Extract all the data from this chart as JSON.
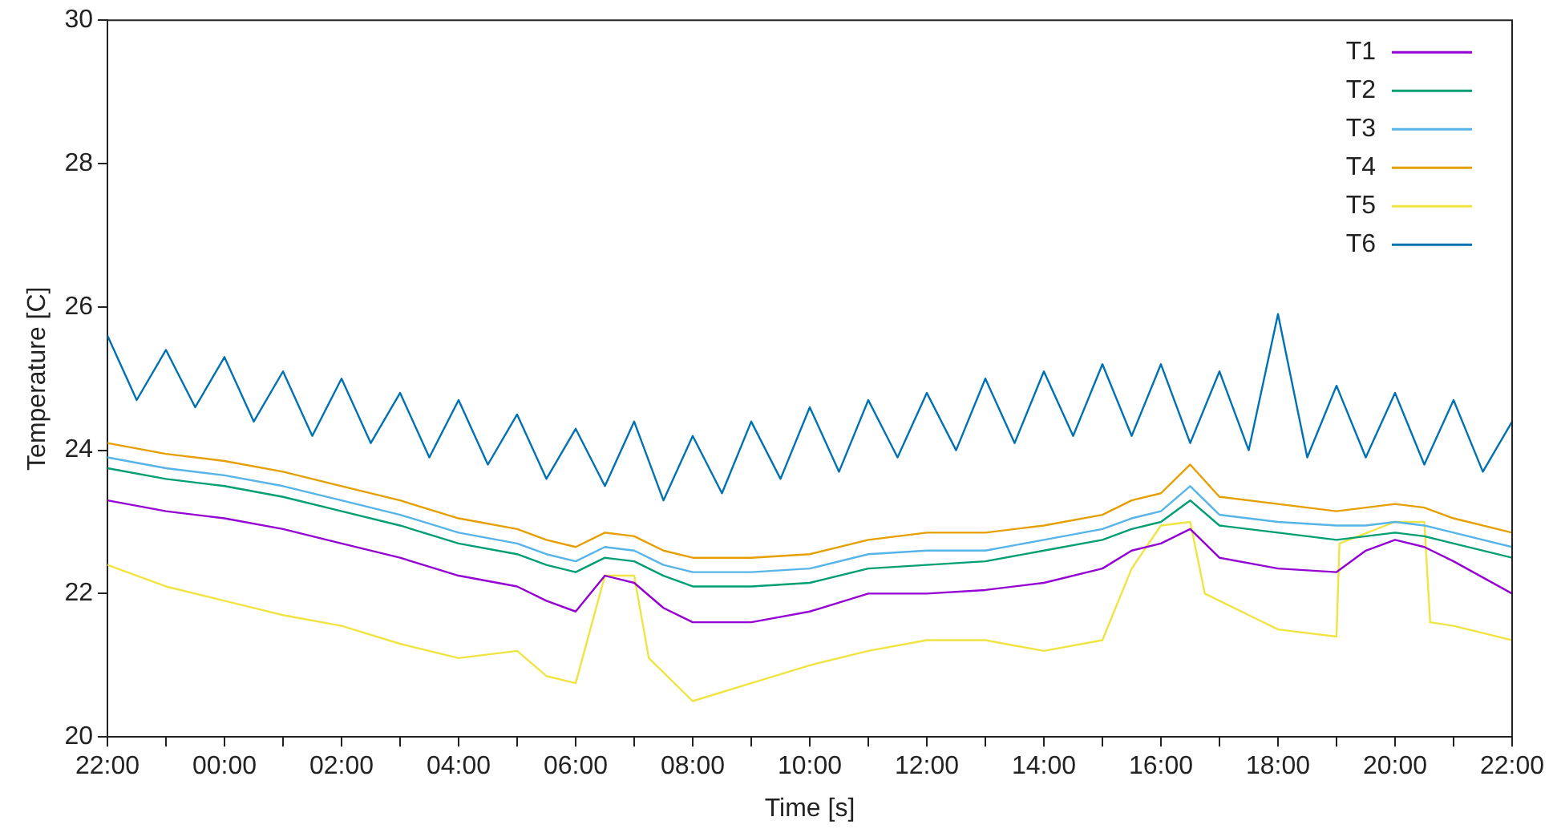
{
  "chart_data": {
    "type": "line",
    "xlabel": "Time [s]",
    "ylabel": "Temperature [C]",
    "xlim": [
      "--01-01T22:00",
      "--01-02T22:00"
    ],
    "ylim": [
      20,
      30
    ],
    "xticks": [
      {
        "value": "--01-01T22:00",
        "label": "22:00"
      },
      {
        "value": "--01-01T23:00",
        "label": null
      },
      {
        "value": "--01-02T00:00",
        "label": "00:00"
      },
      {
        "value": "--01-02T01:00",
        "label": null
      },
      {
        "value": "--01-02T02:00",
        "label": "02:00"
      },
      {
        "value": "--01-02T03:00",
        "label": null
      },
      {
        "value": "--01-02T04:00",
        "label": "04:00"
      },
      {
        "value": "--01-02T05:00",
        "label": null
      },
      {
        "value": "--01-02T06:00",
        "label": "06:00"
      },
      {
        "value": "--01-02T07:00",
        "label": null
      },
      {
        "value": "--01-02T08:00",
        "label": "08:00"
      },
      {
        "value": "--01-02T09:00",
        "label": null
      },
      {
        "value": "--01-02T10:00",
        "label": "10:00"
      },
      {
        "value": "--01-02T11:00",
        "label": null
      },
      {
        "value": "--01-02T12:00",
        "label": "12:00"
      },
      {
        "value": "--01-02T13:00",
        "label": null
      },
      {
        "value": "--01-02T14:00",
        "label": "14:00"
      },
      {
        "value": "--01-02T15:00",
        "label": null
      },
      {
        "value": "--01-02T16:00",
        "label": "16:00"
      },
      {
        "value": "--01-02T17:00",
        "label": null
      },
      {
        "value": "--01-02T18:00",
        "label": "18:00"
      },
      {
        "value": "--01-02T19:00",
        "label": null
      },
      {
        "value": "--01-02T20:00",
        "label": "20:00"
      },
      {
        "value": "--01-02T21:00",
        "label": null
      },
      {
        "value": "--01-02T22:00",
        "label": "22:00"
      }
    ],
    "yticks": [
      20,
      22,
      24,
      26,
      28,
      30
    ],
    "grid": false,
    "legend": "top right",
    "marker": "none",
    "line_style": "solid",
    "x": [
      "--01-01T22:00",
      "--01-01T23:00",
      "--01-02T00:00",
      "--01-02T01:00",
      "--01-02T02:00",
      "--01-02T03:00",
      "--01-02T04:00",
      "--01-02T05:00",
      "--01-02T05:30",
      "--01-02T06:00",
      "--01-02T06:30",
      "--01-02T07:00",
      "--01-02T07:30",
      "--01-02T08:00",
      "--01-02T09:00",
      "--01-02T10:00",
      "--01-02T11:00",
      "--01-02T12:00",
      "--01-02T13:00",
      "--01-02T14:00",
      "--01-02T15:00",
      "--01-02T15:30",
      "--01-02T16:00",
      "--01-02T16:30",
      "--01-02T17:00",
      "--01-02T18:00",
      "--01-02T19:00",
      "--01-02T19:30",
      "--01-02T20:00",
      "--01-02T20:30",
      "--01-02T21:00",
      "--01-02T22:00"
    ],
    "series": [
      {
        "name": "T1",
        "color": "#9400d3",
        "values": [
          23.3,
          23.15,
          23.05,
          22.9,
          22.7,
          22.5,
          22.25,
          22.1,
          21.9,
          21.75,
          22.25,
          22.15,
          21.8,
          21.6,
          21.6,
          21.75,
          22.0,
          22.0,
          22.05,
          22.15,
          22.35,
          22.6,
          22.7,
          22.9,
          22.5,
          22.35,
          22.3,
          22.6,
          22.75,
          22.65,
          22.45,
          22.0
        ]
      },
      {
        "name": "T2",
        "color": "#009e73",
        "values": [
          23.75,
          23.6,
          23.5,
          23.35,
          23.15,
          22.95,
          22.7,
          22.55,
          22.4,
          22.3,
          22.5,
          22.45,
          22.25,
          22.1,
          22.1,
          22.15,
          22.35,
          22.4,
          22.45,
          22.6,
          22.75,
          22.9,
          23.0,
          23.3,
          22.95,
          22.85,
          22.75,
          22.8,
          22.85,
          22.8,
          22.7,
          22.5
        ]
      },
      {
        "name": "T3",
        "color": "#56b4e9",
        "values": [
          23.9,
          23.75,
          23.65,
          23.5,
          23.3,
          23.1,
          22.85,
          22.7,
          22.55,
          22.45,
          22.65,
          22.6,
          22.4,
          22.3,
          22.3,
          22.35,
          22.55,
          22.6,
          22.6,
          22.75,
          22.9,
          23.05,
          23.15,
          23.5,
          23.1,
          23.0,
          22.95,
          22.95,
          23.0,
          22.95,
          22.85,
          22.65
        ]
      },
      {
        "name": "T4",
        "color": "#e69f00",
        "values": [
          24.1,
          23.95,
          23.85,
          23.7,
          23.5,
          23.3,
          23.05,
          22.9,
          22.75,
          22.65,
          22.85,
          22.8,
          22.6,
          22.5,
          22.5,
          22.55,
          22.75,
          22.85,
          22.85,
          22.95,
          23.1,
          23.3,
          23.4,
          23.8,
          23.35,
          23.25,
          23.15,
          23.2,
          23.25,
          23.2,
          23.05,
          22.85
        ]
      },
      {
        "name": "T5",
        "color": "#f0e442",
        "x": [
          "--01-01T22:00",
          "--01-01T23:00",
          "--01-02T00:00",
          "--01-02T01:00",
          "--01-02T02:00",
          "--01-02T03:00",
          "--01-02T04:00",
          "--01-02T05:00",
          "--01-02T05:30",
          "--01-02T06:00",
          "--01-02T06:15",
          "--01-02T06:30",
          "--01-02T07:00",
          "--01-02T07:15",
          "--01-02T08:00",
          "--01-02T09:00",
          "--01-02T10:00",
          "--01-02T11:00",
          "--01-02T12:00",
          "--01-02T13:00",
          "--01-02T14:00",
          "--01-02T15:00",
          "--01-02T15:30",
          "--01-02T16:00",
          "--01-02T16:30",
          "--01-02T16:45",
          "--01-02T17:30",
          "--01-02T18:00",
          "--01-02T19:00",
          "--01-02T19:03",
          "--01-02T20:00",
          "--01-02T20:30",
          "--01-02T20:36",
          "--01-02T21:00",
          "--01-02T22:00"
        ],
        "values": [
          22.4,
          22.1,
          21.9,
          21.7,
          21.55,
          21.3,
          21.1,
          21.2,
          20.85,
          20.75,
          21.5,
          22.25,
          22.25,
          21.1,
          20.5,
          20.75,
          21.0,
          21.2,
          21.35,
          21.35,
          21.2,
          21.35,
          22.35,
          22.95,
          23.0,
          22.0,
          21.7,
          21.5,
          21.4,
          22.7,
          23.0,
          23.0,
          21.6,
          21.55,
          21.35
        ]
      },
      {
        "name": "T6",
        "color": "#0072b2",
        "x": [
          "--01-01T22:00",
          "--01-01T22:30",
          "--01-01T23:00",
          "--01-01T23:30",
          "--01-02T00:00",
          "--01-02T00:30",
          "--01-02T01:00",
          "--01-02T01:30",
          "--01-02T02:00",
          "--01-02T02:30",
          "--01-02T03:00",
          "--01-02T03:30",
          "--01-02T04:00",
          "--01-02T04:30",
          "--01-02T05:00",
          "--01-02T05:30",
          "--01-02T06:00",
          "--01-02T06:30",
          "--01-02T07:00",
          "--01-02T07:30",
          "--01-02T08:00",
          "--01-02T08:30",
          "--01-02T09:00",
          "--01-02T09:30",
          "--01-02T10:00",
          "--01-02T10:30",
          "--01-02T11:00",
          "--01-02T11:30",
          "--01-02T12:00",
          "--01-02T12:30",
          "--01-02T13:00",
          "--01-02T13:30",
          "--01-02T14:00",
          "--01-02T14:30",
          "--01-02T15:00",
          "--01-02T15:30",
          "--01-02T16:00",
          "--01-02T16:30",
          "--01-02T17:00",
          "--01-02T17:30",
          "--01-02T18:00",
          "--01-02T18:30",
          "--01-02T19:00",
          "--01-02T19:30",
          "--01-02T20:00",
          "--01-02T20:30",
          "--01-02T21:00",
          "--01-02T21:30",
          "--01-02T22:00"
        ],
        "values": [
          25.6,
          24.7,
          25.4,
          24.6,
          25.3,
          24.4,
          25.1,
          24.2,
          25.0,
          24.1,
          24.8,
          23.9,
          24.7,
          23.8,
          24.5,
          23.6,
          24.3,
          23.5,
          24.4,
          23.3,
          24.2,
          23.4,
          24.4,
          23.6,
          24.6,
          23.7,
          24.7,
          23.9,
          24.8,
          24.0,
          25.0,
          24.1,
          25.1,
          24.2,
          25.2,
          24.2,
          25.2,
          24.1,
          25.1,
          24.0,
          25.9,
          23.9,
          24.9,
          23.9,
          24.8,
          23.8,
          24.7,
          23.7,
          24.4
        ]
      }
    ]
  }
}
